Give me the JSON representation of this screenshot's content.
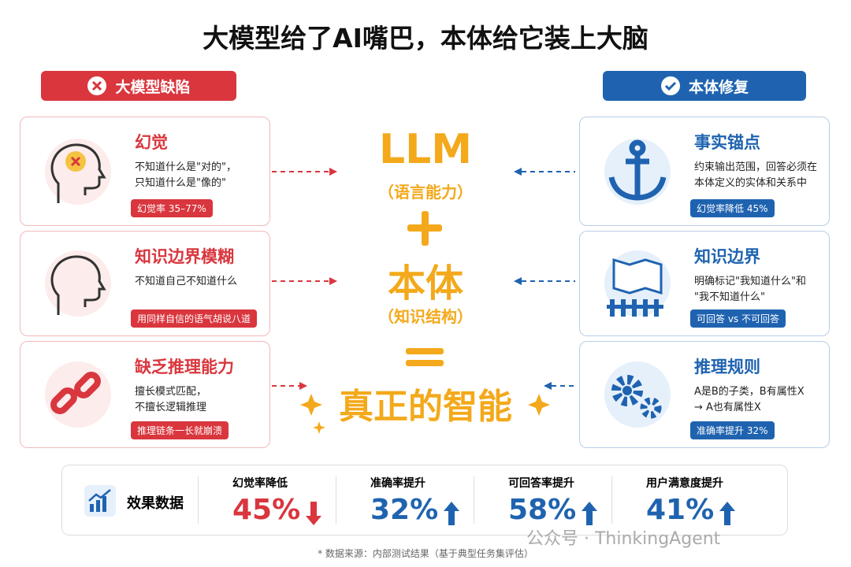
{
  "title": "大模型给了AI嘴巴，本体给它装上大脑",
  "left_header": {
    "label": "大模型缺陷"
  },
  "right_header": {
    "label": "本体修复"
  },
  "problems": [
    {
      "title": "幻觉",
      "desc": [
        "不知道什么是\"对的\"，",
        "只知道什么是\"像的\""
      ],
      "badge": "幻觉率 35–77%"
    },
    {
      "title": "知识边界模糊",
      "desc": [
        "不知道自己不知道什么"
      ],
      "badge": "用同样自信的语气胡说八道"
    },
    {
      "title": "缺乏推理能力",
      "desc": [
        "擅长模式匹配，",
        "不擅长逻辑推理"
      ],
      "badge": "推理链条一长就崩溃"
    }
  ],
  "fixes": [
    {
      "title": "事实锚点",
      "desc": [
        "约束输出范围，回答必须在",
        "本体定义的实体和关系中"
      ],
      "badge": "幻觉率降低 45%"
    },
    {
      "title": "知识边界",
      "desc": [
        "明确标记\"我知道什么\"和",
        "\"我不知道什么\""
      ],
      "badge": "可回答 vs 不可回答"
    },
    {
      "title": "推理规则",
      "desc": [
        "A是B的子类，B有属性X",
        "→ A也有属性X"
      ],
      "badge": "准确率提升 32%"
    }
  ],
  "center": {
    "llm": "LLM",
    "llm_sub": "（语言能力）",
    "ontology": "本体",
    "ontology_sub": "（知识结构）",
    "result": "真正的智能"
  },
  "metrics": {
    "label": "效果数据",
    "items": [
      {
        "label": "幻觉率降低",
        "value": "45%"
      },
      {
        "label": "准确率提升",
        "value": "32%"
      },
      {
        "label": "可回答率提升",
        "value": "58%"
      },
      {
        "label": "用户满意度提升",
        "value": "41%"
      }
    ]
  },
  "watermark": "公众号 · ThinkingAgent",
  "footnote": "* 数据来源：内部测试结果（基于典型任务集评估）"
}
